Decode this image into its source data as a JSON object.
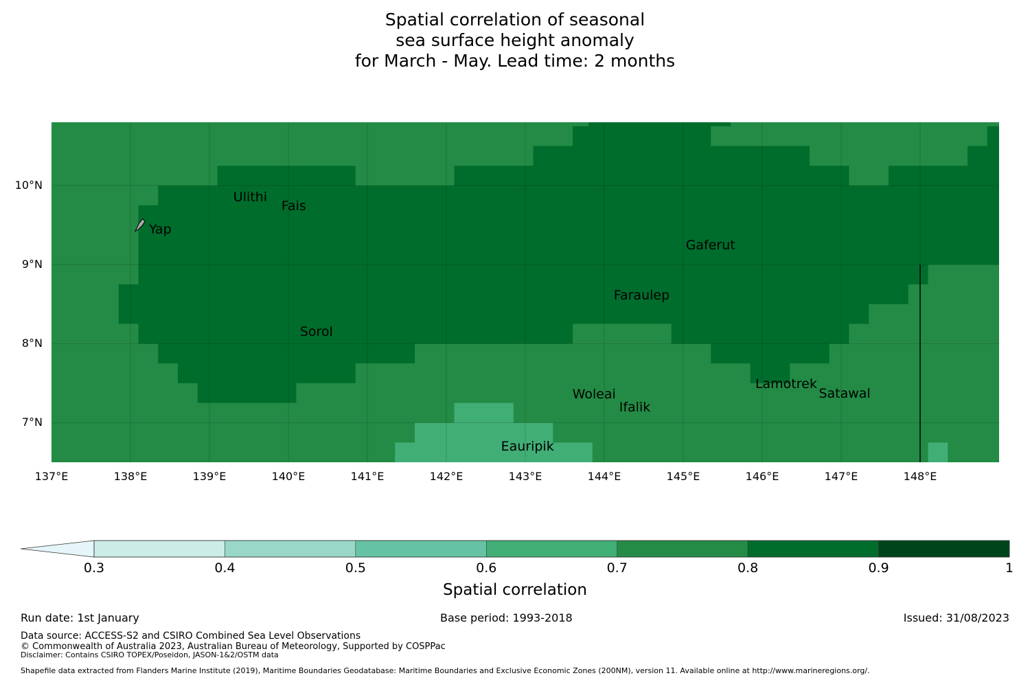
{
  "title": {
    "line1": "Spatial correlation of seasonal",
    "line2": "sea surface height anomaly",
    "line3": "for March - May. Lead time: 2 months"
  },
  "map": {
    "lon_range": [
      137.0,
      149.0
    ],
    "lat_range": [
      6.5,
      10.8
    ],
    "cell_size_deg": 0.25,
    "lat_labels": [
      "10°N",
      "9°N",
      "8°N",
      "7°N"
    ],
    "lat_values": [
      10,
      9,
      8,
      7
    ],
    "lon_labels": [
      "137°E",
      "138°E",
      "139°E",
      "140°E",
      "141°E",
      "142°E",
      "143°E",
      "144°E",
      "145°E",
      "146°E",
      "147°E",
      "148°E"
    ],
    "lon_values": [
      137,
      138,
      139,
      140,
      141,
      142,
      143,
      144,
      145,
      146,
      147,
      148
    ],
    "field_classes": {
      "background_value": 0.75,
      "regions": [
        {
          "value": 0.85,
          "description": "high correlation band",
          "lon_lat_polygon": "northern-central band"
        },
        {
          "value": 0.65,
          "description": "lower correlation near Eauripik"
        }
      ]
    },
    "places": [
      {
        "name": "Yap",
        "lon": 138.13,
        "lat": 9.51
      },
      {
        "name": "Ulithi",
        "lon": 139.72,
        "lat": 10.0
      },
      {
        "name": "Fais",
        "lon": 140.52,
        "lat": 9.77
      },
      {
        "name": "Gaferut",
        "lon": 145.38,
        "lat": 9.23
      },
      {
        "name": "Faraulep",
        "lon": 144.52,
        "lat": 8.6
      },
      {
        "name": "Sorol",
        "lon": 140.39,
        "lat": 8.13
      },
      {
        "name": "Woleai",
        "lon": 143.91,
        "lat": 7.37
      },
      {
        "name": "Ifalik",
        "lon": 144.45,
        "lat": 7.25
      },
      {
        "name": "Lamotrek",
        "lon": 146.33,
        "lat": 7.5
      },
      {
        "name": "Satawal",
        "lon": 147.03,
        "lat": 7.36
      },
      {
        "name": "Eauripik",
        "lon": 143.04,
        "lat": 6.69
      }
    ],
    "eez_boundary_lon": 148.0
  },
  "colorbar": {
    "label": "Spatial correlation",
    "ticks": [
      "0.3",
      "0.4",
      "0.5",
      "0.6",
      "0.7",
      "0.8",
      "0.9",
      "1"
    ],
    "bins": [
      {
        "from": 0.3,
        "to": 0.4,
        "color": "#ccece6"
      },
      {
        "from": 0.4,
        "to": 0.5,
        "color": "#99d8c9"
      },
      {
        "from": 0.5,
        "to": 0.6,
        "color": "#66c2a4"
      },
      {
        "from": 0.6,
        "to": 0.7,
        "color": "#41ae76"
      },
      {
        "from": 0.7,
        "to": 0.8,
        "color": "#238b45"
      },
      {
        "from": 0.8,
        "to": 0.9,
        "color": "#006d2c"
      },
      {
        "from": 0.9,
        "to": 1.0,
        "color": "#00441b"
      }
    ],
    "under_color": "#e5f5f9"
  },
  "footer": {
    "run_date": "Run date: 1st January",
    "base_period": "Base period: 1993-2018",
    "issued": "Issued: 31/08/2023",
    "data_source": "Data source: ACCESS-S2 and CSIRO Combined Sea Level Observations",
    "copyright": "© Commonwealth of Australia 2023, Australian Bureau of Meteorology, Supported by COSPPac",
    "disclaimer": "Disclaimer: Contains CSIRO TOPEX/Poseidon, JASON-1&2/OSTM data",
    "shapefile": "Shapefile data extracted from Flanders Marine Institute (2019), Maritime Boundaries Geodatabase: Maritime Boundaries and Exclusive Economic Zones (200NM), version 11. Available online at http://www.marineregions.org/."
  }
}
